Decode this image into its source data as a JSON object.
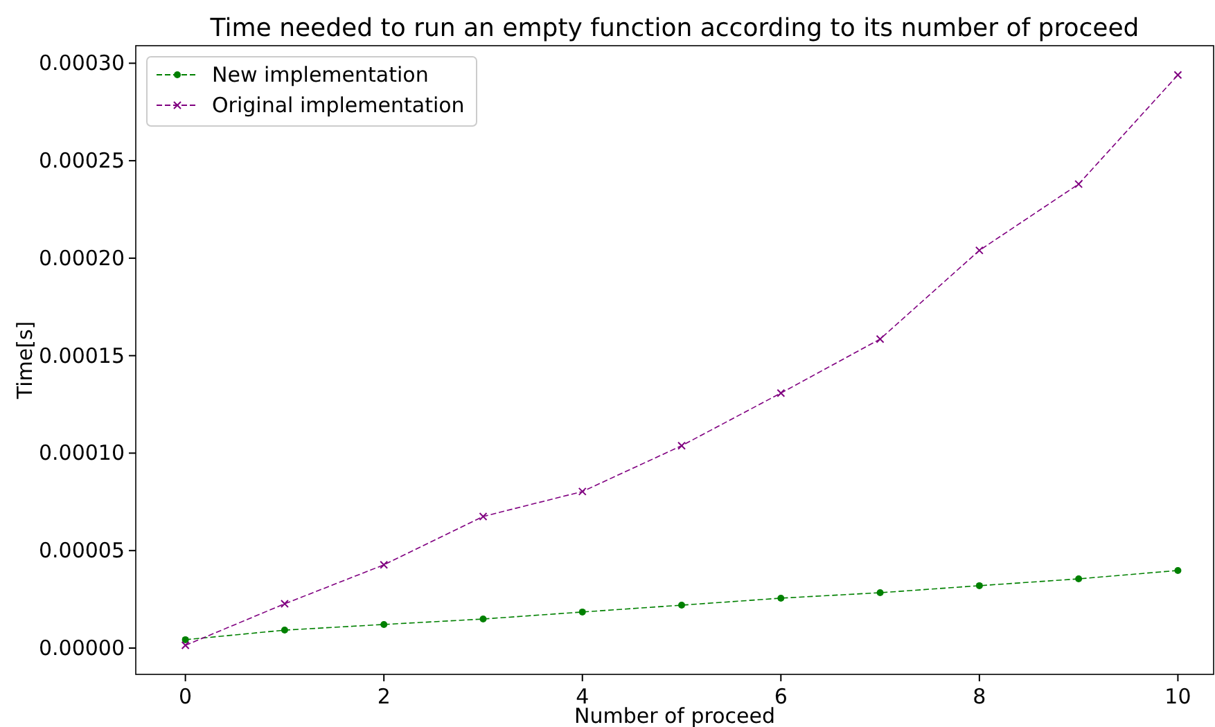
{
  "chart_data": {
    "type": "line",
    "title": "Time needed to run an empty function according to its number of proceed",
    "xlabel": "Number of proceed",
    "ylabel": "Time[s]",
    "x": [
      0,
      1,
      2,
      3,
      4,
      5,
      6,
      7,
      8,
      9,
      10
    ],
    "series": [
      {
        "name": "New implementation",
        "color": "#008000",
        "marker": "circle",
        "values": [
          4.3e-06,
          9.2e-06,
          1.21e-05,
          1.49e-05,
          1.85e-05,
          2.2e-05,
          2.56e-05,
          2.84e-05,
          3.2e-05,
          3.55e-05,
          3.98e-05
        ]
      },
      {
        "name": "Original implementation",
        "color": "#800080",
        "marker": "cross",
        "values": [
          1.4e-06,
          2.27e-05,
          4.27e-05,
          6.75e-05,
          8.03e-05,
          0.0001038,
          0.0001308,
          0.0001585,
          0.000204,
          0.000238,
          0.000294
        ]
      }
    ],
    "xlim": [
      -0.5,
      10.36
    ],
    "xticks": [
      0,
      2,
      4,
      6,
      8,
      10
    ],
    "ylim": [
      -1.35e-05,
      0.000309
    ],
    "yticks": [
      {
        "value": 0,
        "label": "0.00000"
      },
      {
        "value": 5e-05,
        "label": "0.00005"
      },
      {
        "value": 0.0001,
        "label": "0.00010"
      },
      {
        "value": 0.00015,
        "label": "0.00015"
      },
      {
        "value": 0.0002,
        "label": "0.00020"
      },
      {
        "value": 0.00025,
        "label": "0.00025"
      },
      {
        "value": 0.0003,
        "label": "0.00030"
      }
    ],
    "line_style": "dashed",
    "legend": "top left",
    "grid": false
  }
}
